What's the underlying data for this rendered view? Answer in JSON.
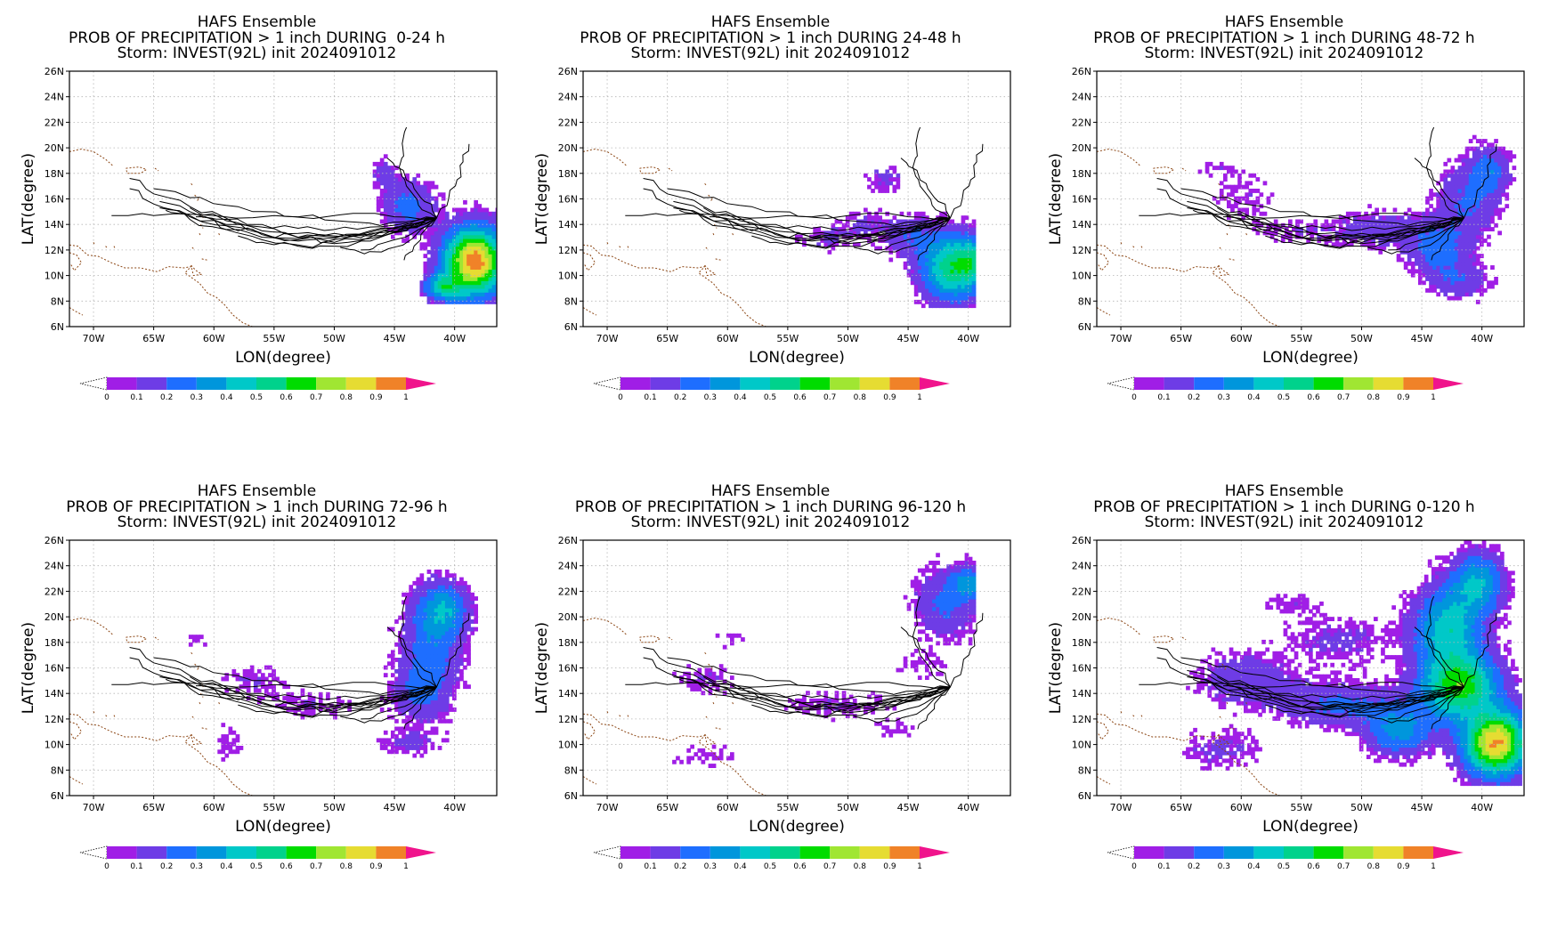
{
  "figure": {
    "ensemble_title": "HAFS Ensemble",
    "storm_line": "Storm: INVEST(92L) init 2024091012",
    "xlabel": "LON(degree)",
    "ylabel": "LAT(degree)",
    "lat_ticks": [
      "6N",
      "8N",
      "10N",
      "12N",
      "14N",
      "16N",
      "18N",
      "20N",
      "22N",
      "24N",
      "26N"
    ],
    "lon_ticks": [
      "70W",
      "65W",
      "60W",
      "55W",
      "50W",
      "45W",
      "40W"
    ],
    "colorbar_labels": [
      "0",
      "0.1",
      "0.2",
      "0.3",
      "0.4",
      "0.5",
      "0.6",
      "0.7",
      "0.8",
      "0.9",
      "1"
    ],
    "colorbar_colors": [
      "#a01ee6",
      "#6e3ce6",
      "#1e6eff",
      "#0096dc",
      "#00c8c8",
      "#00d28c",
      "#00dc00",
      "#a0e632",
      "#e6dc32",
      "#f08228",
      "#fa3c3c"
    ],
    "colorbar_over_color": "#f0148c",
    "track_color": "#000000",
    "coast_color": "#8b4513"
  },
  "panels": [
    {
      "line2": "PROB OF PRECIPITATION > 1 inch DURING  0-24 h",
      "period": "0-24 h"
    },
    {
      "line2": "PROB OF PRECIPITATION > 1 inch DURING 24-48 h",
      "period": "24-48 h"
    },
    {
      "line2": "PROB OF PRECIPITATION > 1 inch DURING 48-72 h",
      "period": "48-72 h"
    },
    {
      "line2": "PROB OF PRECIPITATION > 1 inch DURING 72-96 h",
      "period": "72-96 h"
    },
    {
      "line2": "PROB OF PRECIPITATION > 1 inch DURING 96-120 h",
      "period": "96-120 h"
    },
    {
      "line2": "PROB OF PRECIPITATION > 1 inch DURING 0-120 h",
      "period": "0-120 h"
    }
  ]
}
